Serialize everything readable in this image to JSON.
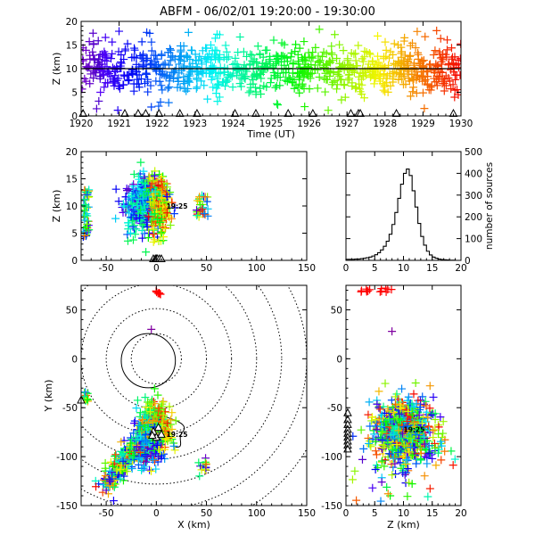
{
  "title": "ABFM - 06/02/01 19:20:00 - 19:30:00",
  "chart_data": [
    {
      "id": "altitude_vs_time",
      "type": "scatter",
      "xlabel": "Time (UT)",
      "ylabel": "Z (km)",
      "xlim": [
        1920,
        1930
      ],
      "ylim": [
        0,
        20
      ],
      "xticks": [
        "1920",
        "1921",
        "1922",
        "1923",
        "1924",
        "1925",
        "1926",
        "1927",
        "1928",
        "1929",
        "1930"
      ],
      "yticks": [
        "0",
        "5",
        "10",
        "15",
        "20"
      ],
      "reference_line_z": 10,
      "station_marker_times": [
        1920.05,
        1921.15,
        1921.5,
        1921.7,
        1922.05,
        1922.6,
        1923.05,
        1924.05,
        1924.6,
        1925.45,
        1926.1,
        1927.1,
        1927.3,
        1927.35,
        1928.3,
        1929.8
      ],
      "color_scheme": "time-coded rainbow: purple -> blue -> cyan -> green -> yellow -> orange -> red"
    },
    {
      "id": "altitude_vs_x",
      "type": "scatter",
      "ylabel": "Z (km)",
      "xlim": [
        -75,
        150
      ],
      "ylim": [
        0,
        20
      ],
      "xticks": [
        "-50",
        "0",
        "50",
        "100",
        "150"
      ],
      "yticks": [
        "0",
        "5",
        "10",
        "15",
        "20"
      ],
      "centroid_label": "19:25"
    },
    {
      "id": "source_histogram",
      "type": "line",
      "ylabel": "number of sources",
      "xlim": [
        0,
        20
      ],
      "ylim": [
        0,
        500
      ],
      "xticks": [
        "0",
        "5",
        "10",
        "15",
        "20"
      ],
      "yticks": [
        "0",
        "100",
        "200",
        "300",
        "400",
        "500"
      ],
      "x": [
        0,
        0.5,
        1,
        1.5,
        2,
        2.5,
        3,
        3.5,
        4,
        4.5,
        5,
        5.5,
        6,
        6.5,
        7,
        7.5,
        8,
        8.5,
        9,
        9.5,
        10,
        10.5,
        11,
        11.5,
        12,
        12.5,
        13,
        13.5,
        14,
        14.5,
        15,
        15.5,
        16,
        16.5,
        17,
        17.5,
        18,
        18.5,
        19,
        19.5,
        20
      ],
      "values": [
        5,
        5,
        5,
        6,
        6,
        8,
        10,
        12,
        15,
        20,
        26,
        35,
        48,
        65,
        88,
        120,
        165,
        220,
        285,
        350,
        400,
        420,
        390,
        320,
        245,
        170,
        110,
        70,
        42,
        25,
        15,
        10,
        6,
        4,
        3,
        2,
        1,
        1,
        0,
        0,
        0
      ]
    },
    {
      "id": "plan_view",
      "type": "scatter",
      "xlabel": "X (km)",
      "ylabel": "Y (km)",
      "xlim": [
        -75,
        150
      ],
      "ylim": [
        -150,
        75
      ],
      "xticks": [
        "-50",
        "0",
        "50",
        "100",
        "150"
      ],
      "yticks": [
        "-150",
        "-100",
        "-50",
        "0",
        "50"
      ],
      "range_ring_radii_km": [
        25,
        50,
        75,
        100,
        125,
        150,
        175
      ],
      "centroid_label": "19:25",
      "stations": [
        [
          -75,
          -42
        ],
        [
          -3,
          -74
        ],
        [
          2,
          -70
        ],
        [
          0,
          -80
        ],
        [
          5,
          -77
        ],
        [
          -4,
          -78
        ]
      ]
    },
    {
      "id": "y_vs_z",
      "type": "scatter",
      "xlabel": "Z (km)",
      "xlim": [
        0,
        20
      ],
      "ylim": [
        -150,
        75
      ],
      "xticks": [
        "0",
        "5",
        "10",
        "15",
        "20"
      ],
      "yticks": [
        "-150",
        "-100",
        "-50",
        "0",
        "50"
      ],
      "centroid_label": "19:25"
    }
  ]
}
